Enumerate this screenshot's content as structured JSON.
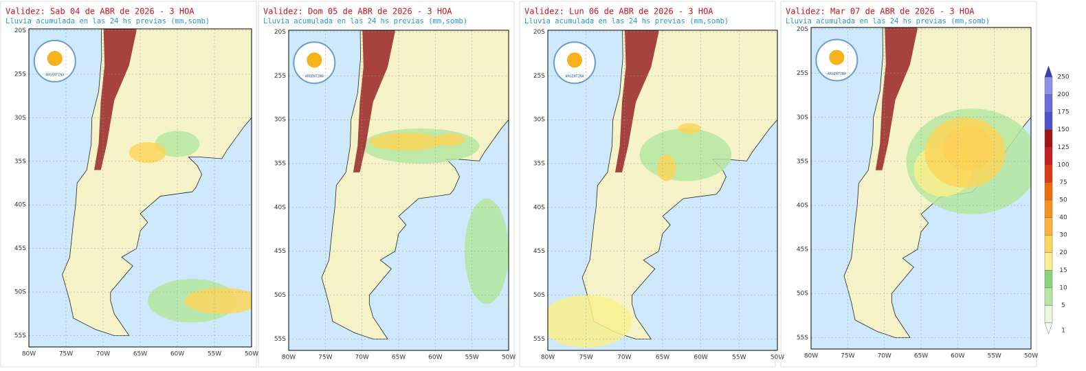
{
  "panels": [
    {
      "title": "Validez: Sab 04 de ABR de 2026 - 3 HOA",
      "subtitle": "Lluvia acumulada en las 24 hs previas (mm,somb)"
    },
    {
      "title": "Validez: Dom 05 de ABR de 2026 - 3 HOA",
      "subtitle": "Lluvia acumulada en las 24 hs previas (mm,somb)"
    },
    {
      "title": "Validez: Lun 06 de ABR de 2026 - 3 HOA",
      "subtitle": "Lluvia acumulada en las 24 hs previas (mm,somb)"
    },
    {
      "title": "Validez: Mar 07 de ABR de 2026 - 3 HOA",
      "subtitle": "Lluvia acumulada en las 24 hs previas (mm,somb)"
    }
  ],
  "lat_labels": [
    "20S",
    "25S",
    "30S",
    "35S",
    "40S",
    "45S",
    "50S",
    "55S"
  ],
  "lon_labels": [
    "80W",
    "75W",
    "70W",
    "65W",
    "60W",
    "55W",
    "50W"
  ],
  "logo": "ARGENTINA",
  "colorbar": {
    "ticks": [
      1,
      5,
      10,
      15,
      20,
      30,
      40,
      50,
      75,
      100,
      125,
      150,
      175,
      200,
      250
    ],
    "colors": [
      "#e8f8e0",
      "#b4e6a0",
      "#8cd27a",
      "#f8f08c",
      "#fcd65a",
      "#fcb43c",
      "#f8901e",
      "#f06a0a",
      "#dc3c14",
      "#c41e1e",
      "#a01414",
      "#5050c8",
      "#6c6cdc",
      "#9090ec"
    ]
  }
}
